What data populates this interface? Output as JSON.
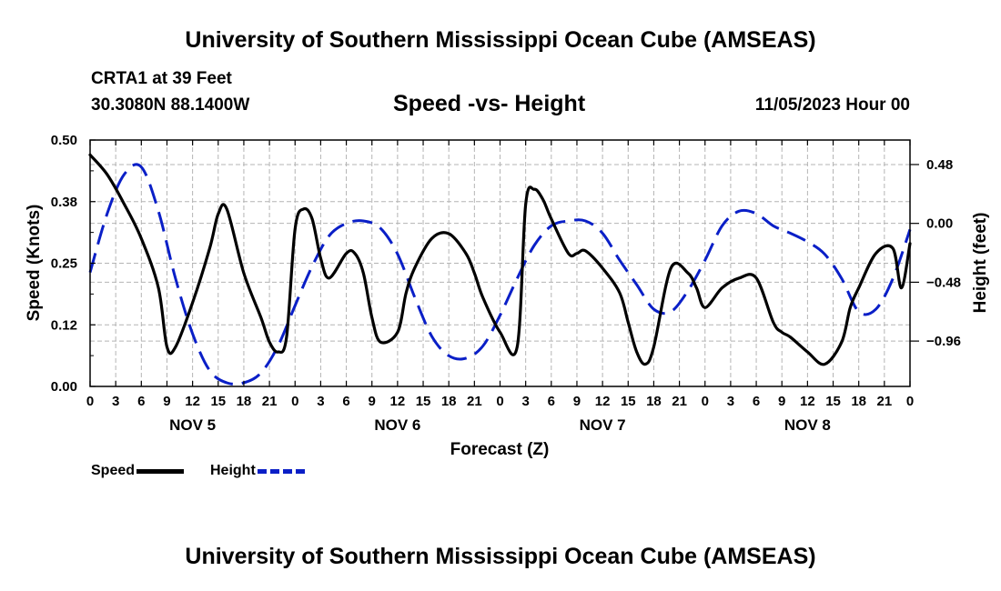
{
  "header": {
    "title": "University of Southern Mississippi Ocean Cube (AMSEAS)",
    "station": "CRTA1 at 39 Feet",
    "coordinates": "30.3080N  88.1400W",
    "subtitle": "Speed -vs- Height",
    "datetime": "11/05/2023 Hour 00"
  },
  "footer": {
    "title": "University of Southern Mississippi Ocean Cube (AMSEAS)"
  },
  "legend": {
    "speed_label": "Speed",
    "height_label": "Height"
  },
  "colors": {
    "speed": "#000000",
    "height": "#0a1fc7",
    "grid": "#b4b4b4"
  },
  "chart_data": {
    "type": "line",
    "xlabel": "Forecast (Z)",
    "ylabel_left": "Speed (Knots)",
    "ylabel_right": "Height (feet)",
    "x_range": [
      0,
      96
    ],
    "x_tick_labels": [
      "0",
      "3",
      "6",
      "9",
      "12",
      "15",
      "18",
      "21",
      "0",
      "3",
      "6",
      "9",
      "12",
      "15",
      "18",
      "21",
      "0",
      "3",
      "6",
      "9",
      "12",
      "15",
      "18",
      "21",
      "0",
      "3",
      "6",
      "9",
      "12",
      "15",
      "18",
      "21",
      "0"
    ],
    "day_labels": [
      "NOV 5",
      "NOV 6",
      "NOV 7",
      "NOV 8"
    ],
    "y_left": {
      "range": [
        0,
        0.5
      ],
      "ticks": [
        0,
        0.125,
        0.25,
        0.375,
        0.5
      ],
      "tick_labels": [
        "0.00",
        "0.12",
        "0.25",
        "0.38",
        "0.50"
      ]
    },
    "y_right": {
      "range": [
        -1.33,
        0.68
      ],
      "ticks": [
        0.48,
        0.0,
        -0.48,
        -0.96
      ],
      "tick_labels": [
        "0.48",
        "0.00",
        "−0.48",
        "−0.96"
      ]
    },
    "series": [
      {
        "name": "Speed",
        "axis": "left",
        "style": "solid",
        "x": [
          0,
          2,
          4,
          6,
          8,
          9,
          10,
          12,
          14,
          15,
          16,
          18,
          20,
          21,
          22,
          23,
          24,
          25,
          26,
          27,
          28,
          30,
          31,
          32,
          33,
          34,
          36,
          37,
          38,
          40,
          42,
          44,
          45,
          46,
          48,
          50,
          51,
          52,
          53,
          54,
          56,
          57,
          58,
          60,
          62,
          63,
          64,
          65,
          66,
          68,
          70,
          71,
          72,
          74,
          76,
          78,
          80,
          81,
          82,
          84,
          86,
          88,
          89,
          90,
          92,
          94,
          95,
          96
        ],
        "values": [
          0.47,
          0.43,
          0.37,
          0.3,
          0.2,
          0.08,
          0.08,
          0.17,
          0.28,
          0.35,
          0.36,
          0.23,
          0.14,
          0.09,
          0.07,
          0.1,
          0.32,
          0.36,
          0.34,
          0.26,
          0.22,
          0.27,
          0.27,
          0.23,
          0.14,
          0.09,
          0.11,
          0.19,
          0.24,
          0.3,
          0.31,
          0.27,
          0.23,
          0.18,
          0.11,
          0.08,
          0.37,
          0.4,
          0.38,
          0.34,
          0.27,
          0.27,
          0.275,
          0.24,
          0.19,
          0.13,
          0.07,
          0.045,
          0.08,
          0.24,
          0.23,
          0.2,
          0.16,
          0.2,
          0.22,
          0.22,
          0.13,
          0.11,
          0.1,
          0.07,
          0.045,
          0.09,
          0.16,
          0.2,
          0.27,
          0.28,
          0.2,
          0.29
        ]
      },
      {
        "name": "Height",
        "axis": "right",
        "style": "dashed",
        "x": [
          0,
          2,
          4,
          6,
          8,
          10,
          12,
          14,
          16,
          18,
          20,
          22,
          24,
          26,
          28,
          30,
          32,
          34,
          36,
          38,
          40,
          42,
          44,
          46,
          48,
          50,
          52,
          54,
          56,
          58,
          60,
          62,
          64,
          66,
          68,
          70,
          72,
          74,
          76,
          78,
          80,
          82,
          84,
          86,
          88,
          90,
          92,
          94,
          96
        ],
        "values": [
          -0.4,
          0.08,
          0.4,
          0.46,
          0.1,
          -0.45,
          -0.9,
          -1.2,
          -1.3,
          -1.3,
          -1.22,
          -1.0,
          -0.67,
          -0.35,
          -0.1,
          0.0,
          0.02,
          -0.04,
          -0.25,
          -0.6,
          -0.92,
          -1.08,
          -1.1,
          -1.0,
          -0.75,
          -0.45,
          -0.18,
          -0.02,
          0.02,
          0.02,
          -0.08,
          -0.3,
          -0.5,
          -0.7,
          -0.72,
          -0.55,
          -0.3,
          -0.02,
          0.1,
          0.08,
          -0.02,
          -0.08,
          -0.15,
          -0.25,
          -0.45,
          -0.72,
          -0.7,
          -0.45,
          -0.05
        ]
      }
    ]
  }
}
